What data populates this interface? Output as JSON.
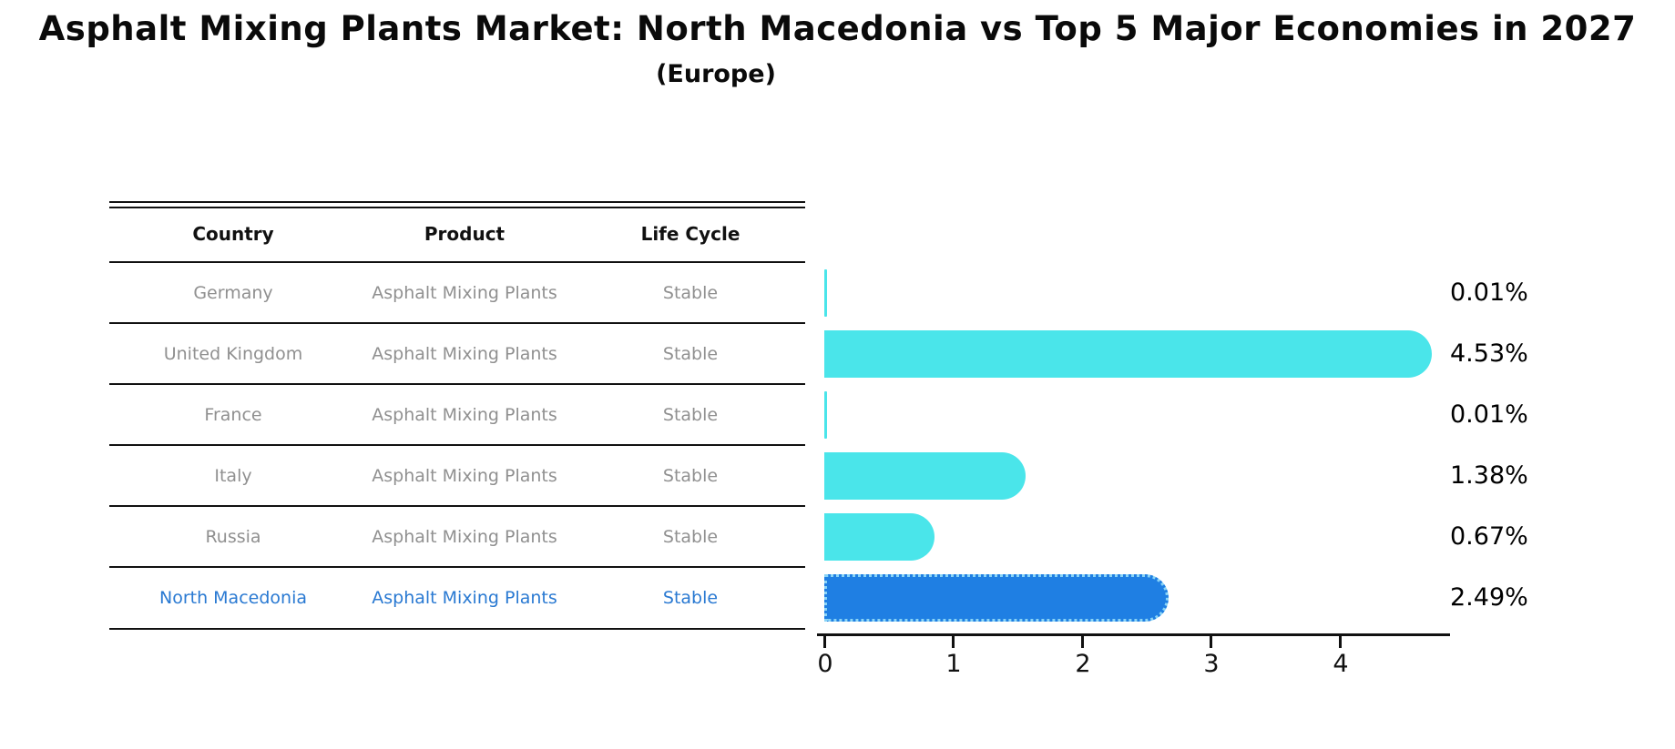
{
  "title": "Asphalt Mixing Plants Market: North Macedonia vs Top 5 Major Economies in 2027",
  "subtitle": "(Europe)",
  "table": {
    "headers": [
      "Country",
      "Product",
      "Life Cycle"
    ],
    "rows": [
      {
        "country": "Germany",
        "product": "Asphalt Mixing Plants",
        "life_cycle": "Stable",
        "highlight": false
      },
      {
        "country": "United Kingdom",
        "product": "Asphalt Mixing Plants",
        "life_cycle": "Stable",
        "highlight": false
      },
      {
        "country": "France",
        "product": "Asphalt Mixing Plants",
        "life_cycle": "Stable",
        "highlight": false
      },
      {
        "country": "Italy",
        "product": "Asphalt Mixing Plants",
        "life_cycle": "Stable",
        "highlight": false
      },
      {
        "country": "Russia",
        "product": "Asphalt Mixing Plants",
        "life_cycle": "Stable",
        "highlight": false
      },
      {
        "country": "North Macedonia",
        "product": "Asphalt Mixing Plants",
        "life_cycle": "Stable",
        "highlight": true
      }
    ]
  },
  "chart_data": {
    "type": "bar",
    "orientation": "horizontal",
    "title": "Asphalt Mixing Plants Market: North Macedonia vs Top 5 Major Economies in 2027",
    "subtitle": "(Europe)",
    "categories": [
      "Germany",
      "United Kingdom",
      "France",
      "Italy",
      "Russia",
      "North Macedonia"
    ],
    "values": [
      0.01,
      4.53,
      0.01,
      1.38,
      0.67,
      2.49
    ],
    "value_labels": [
      "0.01%",
      "4.53%",
      "0.01%",
      "1.38%",
      "0.67%",
      "2.49%"
    ],
    "xticks": [
      "0",
      "1",
      "2",
      "3",
      "4"
    ],
    "xlim": [
      0,
      4.85
    ],
    "grid": false,
    "legend": false,
    "bar_color": "#4AE5EA",
    "highlight_bar_color": "#1F7FE3",
    "highlight_border_color": "#8AD4F6",
    "highlight_text_color": "#2979D2",
    "highlight_index": 5
  }
}
